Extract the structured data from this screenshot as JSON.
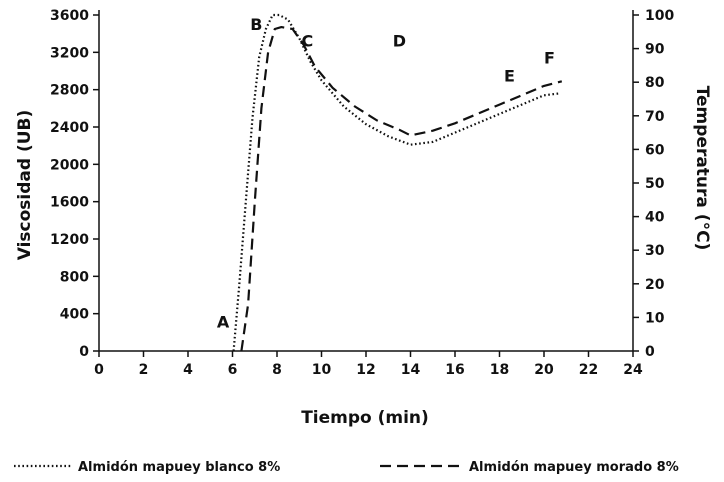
{
  "chart_data": {
    "type": "line",
    "xlabel": "Tiempo (min)",
    "ylabel": "Viscosidad (UB)",
    "y2label": "Temperatura (°C)",
    "xlim": [
      0,
      24
    ],
    "ylim": [
      0,
      3600
    ],
    "y2lim": [
      0,
      100
    ],
    "x_ticks": [
      "0",
      "2",
      "4",
      "6",
      "8",
      "10",
      "12",
      "14",
      "16",
      "18",
      "20",
      "22",
      "24"
    ],
    "y_ticks": [
      "0",
      "400",
      "800",
      "1200",
      "1600",
      "2000",
      "2400",
      "2800",
      "3200",
      "3600"
    ],
    "y2_ticks": [
      "0",
      "10",
      "20",
      "30",
      "40",
      "50",
      "60",
      "70",
      "80",
      "90",
      "100"
    ],
    "grid": false,
    "legend_position": "bottom",
    "series": [
      {
        "name": "Almidón mapuey blanco 8%",
        "style": "dotted",
        "color": "#111111",
        "points": [
          [
            6.05,
            0
          ],
          [
            6.3,
            700
          ],
          [
            6.6,
            1600
          ],
          [
            6.9,
            2500
          ],
          [
            7.2,
            3150
          ],
          [
            7.5,
            3450
          ],
          [
            7.8,
            3600
          ],
          [
            8.1,
            3600
          ],
          [
            8.5,
            3550
          ],
          [
            9.0,
            3350
          ],
          [
            9.5,
            3100
          ],
          [
            10.0,
            2900
          ],
          [
            11.0,
            2620
          ],
          [
            12.0,
            2430
          ],
          [
            13.0,
            2300
          ],
          [
            14.0,
            2210
          ],
          [
            15.0,
            2240
          ],
          [
            16.0,
            2340
          ],
          [
            17.0,
            2440
          ],
          [
            18.0,
            2540
          ],
          [
            19.0,
            2640
          ],
          [
            20.0,
            2740
          ],
          [
            20.7,
            2760
          ]
        ]
      },
      {
        "name": "Almidón mapuey morado 8%",
        "style": "dashed",
        "color": "#111111",
        "points": [
          [
            6.4,
            0
          ],
          [
            6.7,
            500
          ],
          [
            7.0,
            1600
          ],
          [
            7.3,
            2600
          ],
          [
            7.6,
            3200
          ],
          [
            7.9,
            3450
          ],
          [
            8.2,
            3470
          ],
          [
            8.7,
            3450
          ],
          [
            9.2,
            3280
          ],
          [
            9.7,
            3050
          ],
          [
            10.5,
            2820
          ],
          [
            11.5,
            2620
          ],
          [
            12.5,
            2470
          ],
          [
            13.5,
            2370
          ],
          [
            14.0,
            2310
          ],
          [
            15.0,
            2360
          ],
          [
            16.0,
            2440
          ],
          [
            17.0,
            2540
          ],
          [
            18.0,
            2640
          ],
          [
            19.0,
            2740
          ],
          [
            20.0,
            2840
          ],
          [
            20.8,
            2890
          ]
        ]
      }
    ],
    "annotations": [
      {
        "text": "A",
        "x": 5.3,
        "y": 250
      },
      {
        "text": "B",
        "x": 6.8,
        "y": 3440
      },
      {
        "text": "C",
        "x": 9.1,
        "y": 3260
      },
      {
        "text": "D",
        "x": 13.2,
        "y": 3260
      },
      {
        "text": "E",
        "x": 18.2,
        "y": 2890
      },
      {
        "text": "F",
        "x": 20.0,
        "y": 3080
      }
    ]
  }
}
